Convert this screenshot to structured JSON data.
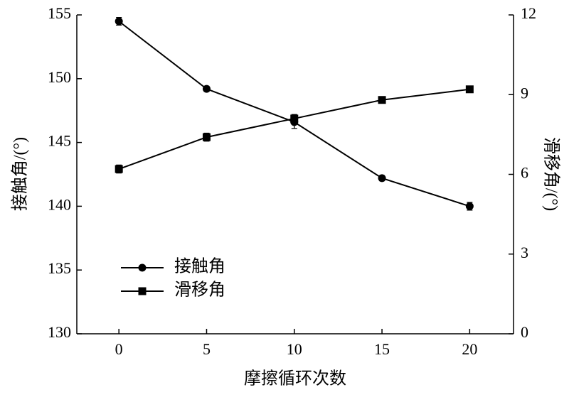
{
  "chart_data": {
    "type": "line",
    "x_label": "摩擦循环次数",
    "y_label": "接触角/(°)",
    "y2_label": "滑移角/(°)",
    "x": [
      0,
      5,
      10,
      15,
      20
    ],
    "xlim": [
      -2.4,
      22.5
    ],
    "xticks": [
      0,
      5,
      10,
      15,
      20
    ],
    "ylim": [
      130,
      155
    ],
    "yticks": [
      130,
      135,
      140,
      145,
      150,
      155
    ],
    "y2lim": [
      0,
      12
    ],
    "y2ticks": [
      0,
      3,
      6,
      9,
      12
    ],
    "legend": "lower-left",
    "series": [
      {
        "name": "接触角",
        "color": "#000000",
        "marker": "circle",
        "values": [
          154.5,
          149.2,
          146.6,
          142.2,
          140.0
        ],
        "errors": [
          0.3,
          0.2,
          0.5,
          0.2,
          0.3
        ]
      },
      {
        "name": "滑移角",
        "color": "#000000",
        "marker": "square",
        "axis": "y2",
        "values": [
          6.2,
          7.4,
          8.1,
          8.8,
          9.2
        ],
        "errors": [
          0.15,
          0.15,
          0.15,
          0.08,
          0.08
        ]
      }
    ]
  }
}
